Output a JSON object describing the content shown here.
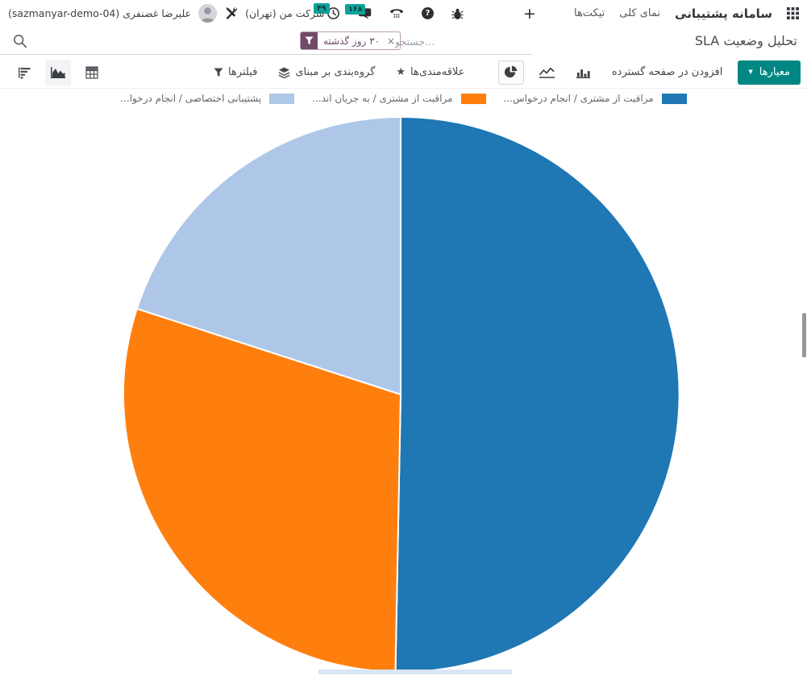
{
  "topbar": {
    "app_name": "سامانه پشتیبانی",
    "menu_overview": "نمای کلی",
    "menu_tickets": "تیکت‌ها",
    "plus_label": "+",
    "clock_badge": "۴۹",
    "chat_badge": "۱۶۸",
    "help_label": "?",
    "company": "شرکت من (تهران)",
    "user": "علیرضا غضنفری (sazmanyar-demo-04)"
  },
  "search": {
    "title": "تحلیل وضعیت SLA",
    "placeholder": "جستجو...",
    "facet": {
      "value": "۳۰ روز گذشته",
      "remove": "×"
    }
  },
  "controls": {
    "measures_label": "معیارها",
    "insert_spreadsheet_label": "افزودن در صفحه گسترده",
    "filters_label": "فیلترها",
    "group_by_label": "گروه‌بندی بر مبنای",
    "favorites_label": "علاقه‌مندی‌ها",
    "favorites_star": "★"
  },
  "legend": {
    "items": [
      {
        "label": "پشتیبانی اختصاصی / انجام درخوا...",
        "color": "#aec7e8"
      },
      {
        "label": "مراقبت از مشتری / به جریان اند...",
        "color": "#ff7f0e"
      },
      {
        "label": "مراقبت از مشتری / انجام درخواس...",
        "color": "#1f77b4"
      }
    ]
  },
  "chart_data": {
    "type": "pie",
    "title": "تحلیل وضعیت SLA",
    "labels": [
      "مراقبت از مشتری / انجام درخواس...",
      "مراقبت از مشتری / به جریان اند...",
      "پشتیبانی اختصاصی / انجام درخوا..."
    ],
    "values": [
      50.3,
      29.7,
      20.0
    ],
    "unit": "percent",
    "colors": [
      "#1f77b4",
      "#ff7f0e",
      "#aec7e8"
    ],
    "start_angle_deg": 0,
    "direction": "clockwise",
    "legend_position": "top"
  },
  "theme": {
    "accent_teal": "#008784",
    "facet_purple": "#714B67"
  }
}
